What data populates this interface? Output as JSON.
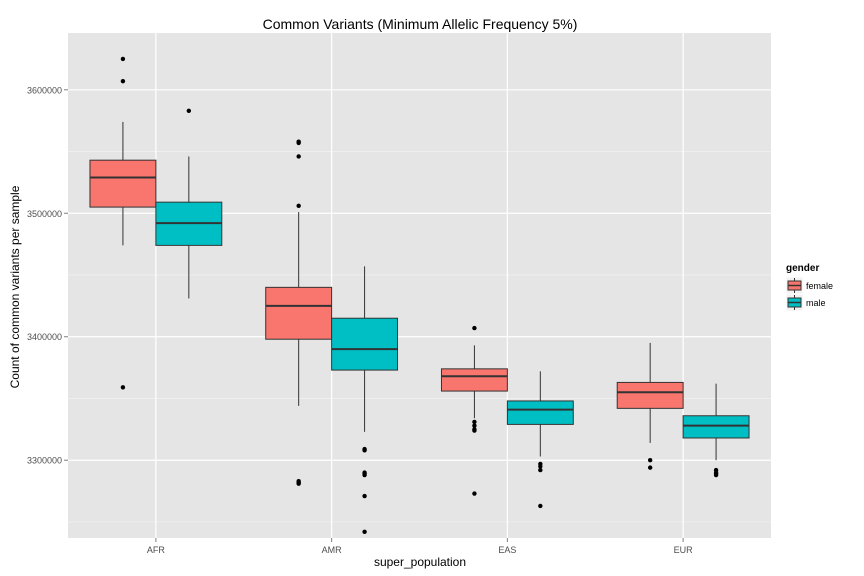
{
  "chart_data": {
    "type": "boxplot",
    "title": "Common Variants (Minimum Allelic Frequency 5%)",
    "xlabel": "super_population",
    "ylabel": "Count of common variants per sample",
    "categories": [
      "AFR",
      "AMR",
      "EAS",
      "EUR"
    ],
    "ylim": [
      3237000,
      3646000
    ],
    "yticks": [
      3300000,
      3400000,
      3500000,
      3600000
    ],
    "ytick_labels": [
      "3300000",
      "3400000",
      "3500000",
      "3600000"
    ],
    "grid": true,
    "legend": {
      "title": "gender",
      "position": "right",
      "entries": [
        {
          "label": "female",
          "color": "#F8766D"
        },
        {
          "label": "male",
          "color": "#00BFC4"
        }
      ]
    },
    "series": [
      {
        "name": "female",
        "color": "#F8766D",
        "boxes": [
          {
            "category": "AFR",
            "whisker_low": 3474000,
            "q1": 3505000,
            "median": 3529000,
            "q3": 3543000,
            "whisker_high": 3574000,
            "outliers": [
              3625000,
              3607000,
              3359000
            ]
          },
          {
            "category": "AMR",
            "whisker_low": 3344000,
            "q1": 3398000,
            "median": 3425000,
            "q3": 3440000,
            "whisker_high": 3501000,
            "outliers": [
              3558000,
              3557000,
              3546000,
              3506000,
              3283000,
              3282000,
              3281000
            ]
          },
          {
            "category": "EAS",
            "whisker_low": 3334000,
            "q1": 3356000,
            "median": 3368000,
            "q3": 3374000,
            "whisker_high": 3393000,
            "outliers": [
              3407000,
              3331000,
              3328000,
              3325000,
              3324000,
              3273000
            ]
          },
          {
            "category": "EUR",
            "whisker_low": 3314000,
            "q1": 3342000,
            "median": 3355000,
            "q3": 3363000,
            "whisker_high": 3395000,
            "outliers": [
              3300000,
              3294000
            ]
          }
        ]
      },
      {
        "name": "male",
        "color": "#00BFC4",
        "boxes": [
          {
            "category": "AFR",
            "whisker_low": 3431000,
            "q1": 3474000,
            "median": 3492000,
            "q3": 3509000,
            "whisker_high": 3546000,
            "outliers": [
              3583000
            ]
          },
          {
            "category": "AMR",
            "whisker_low": 3323000,
            "q1": 3373000,
            "median": 3390000,
            "q3": 3415000,
            "whisker_high": 3457000,
            "outliers": [
              3309000,
              3308000,
              3290000,
              3289000,
              3288000,
              3271000,
              3242000
            ]
          },
          {
            "category": "EAS",
            "whisker_low": 3303000,
            "q1": 3329000,
            "median": 3341000,
            "q3": 3348000,
            "whisker_high": 3372000,
            "outliers": [
              3297000,
              3295000,
              3292000,
              3263000
            ]
          },
          {
            "category": "EUR",
            "whisker_low": 3300000,
            "q1": 3318000,
            "median": 3328000,
            "q3": 3336000,
            "whisker_high": 3362000,
            "outliers": [
              3292000,
              3290000,
              3289000,
              3288000
            ]
          }
        ]
      }
    ]
  }
}
